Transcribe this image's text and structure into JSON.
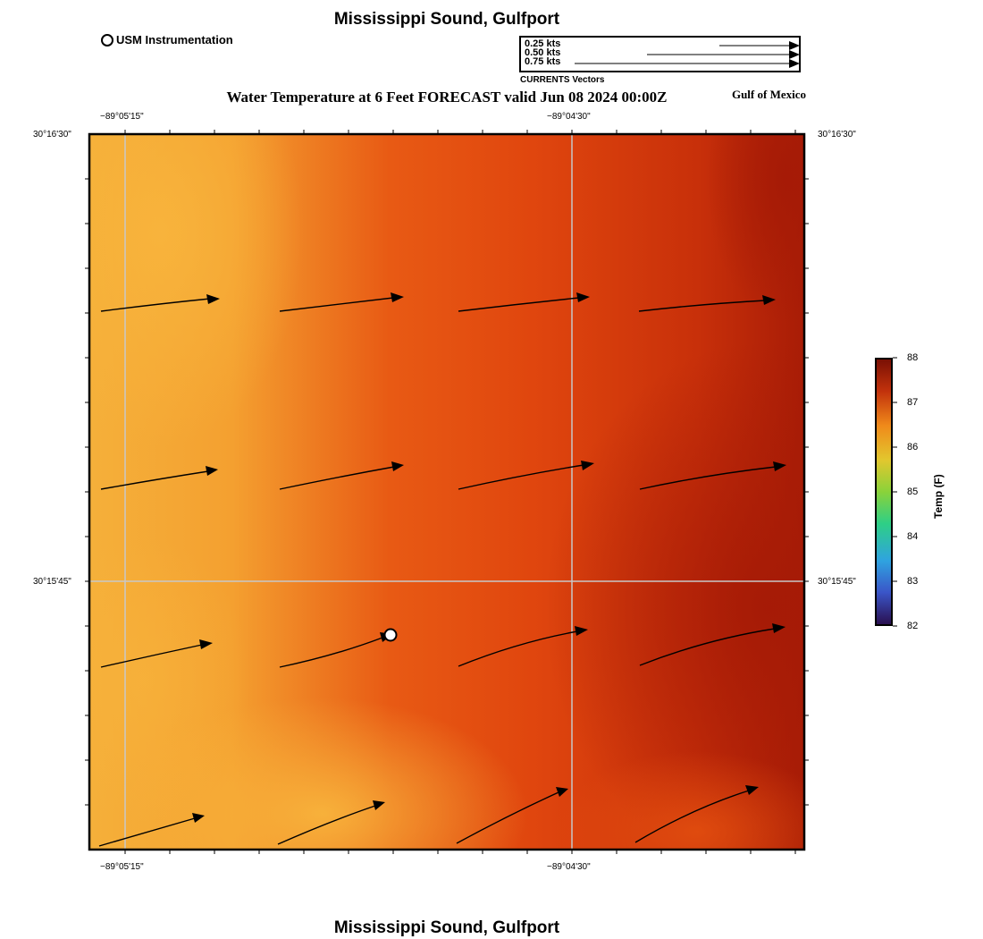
{
  "header": {
    "title": "Mississippi Sound, Gulfport",
    "forecast_title": "Water Temperature at 6 Feet FORECAST valid Jun 08 2024 00:00Z",
    "region_label": "Gulf of Mexico"
  },
  "footer": {
    "title": "Mississippi Sound, Gulfport"
  },
  "legend": {
    "instrumentation_label": "USM Instrumentation",
    "vectors": [
      "0.25 kts",
      "0.50 kts",
      "0.75 kts"
    ],
    "vectors_caption": "CURRENTS Vectors"
  },
  "map": {
    "lon_labels": [
      "−89°05'15\"",
      "−89°04'30\""
    ],
    "lat_labels": [
      "30°16'30\"",
      "30°15'45\""
    ]
  },
  "colorbar": {
    "title": "Temp (F)",
    "ticks": [
      "88",
      "87",
      "86",
      "85",
      "84",
      "83",
      "82"
    ]
  },
  "colors": {
    "warm_light": "#f5b03a",
    "warm_mid": "#e64f12",
    "warm_dark": "#a81c06",
    "grid": "#c8c8c8"
  }
}
